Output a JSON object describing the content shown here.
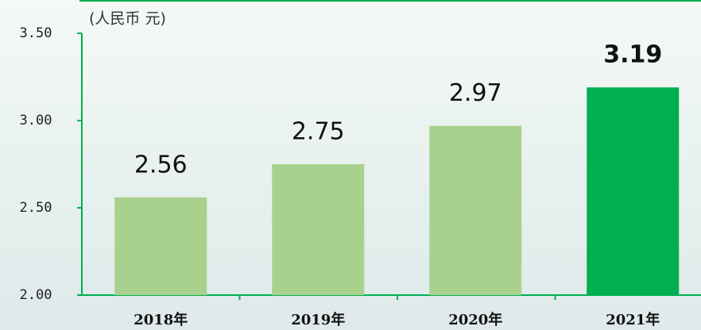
{
  "chart_data": {
    "type": "bar",
    "y_label": "(人民币 元)",
    "categories": [
      "2018年",
      "2019年",
      "2020年",
      "2021年"
    ],
    "values": [
      2.56,
      2.75,
      2.97,
      3.19
    ],
    "colors": [
      "#a9d18e",
      "#a9d18e",
      "#a9d18e",
      "#00b050"
    ],
    "highlight_index": 3,
    "ylim": [
      2,
      3.5
    ],
    "yticks": [
      {
        "value": 2,
        "label": "2.00"
      },
      {
        "value": 2.5,
        "label": "2.50"
      },
      {
        "value": 3,
        "label": "3.00"
      },
      {
        "value": 3.5,
        "label": "3.50"
      }
    ]
  }
}
